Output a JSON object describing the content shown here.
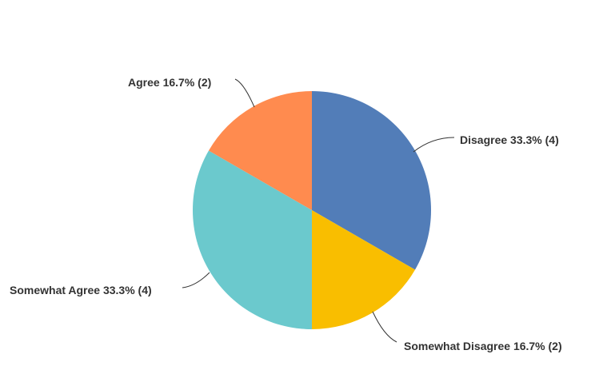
{
  "chart_data": {
    "type": "pie",
    "categories": [
      "Disagree",
      "Somewhat Disagree",
      "Somewhat Agree",
      "Agree"
    ],
    "values": [
      4,
      2,
      4,
      2
    ],
    "percentages": [
      33.3,
      16.7,
      33.3,
      16.7
    ],
    "labels": [
      "Disagree 33.3% (4)",
      "Somewhat Disagree 16.7% (2)",
      "Somewhat Agree 33.3% (4)",
      "Agree 16.7% (2)"
    ],
    "colors": [
      "#527db8",
      "#f9be00",
      "#6bc9cd",
      "#ff8b4f"
    ],
    "start_angle": "top, clockwise",
    "legend": "none"
  }
}
